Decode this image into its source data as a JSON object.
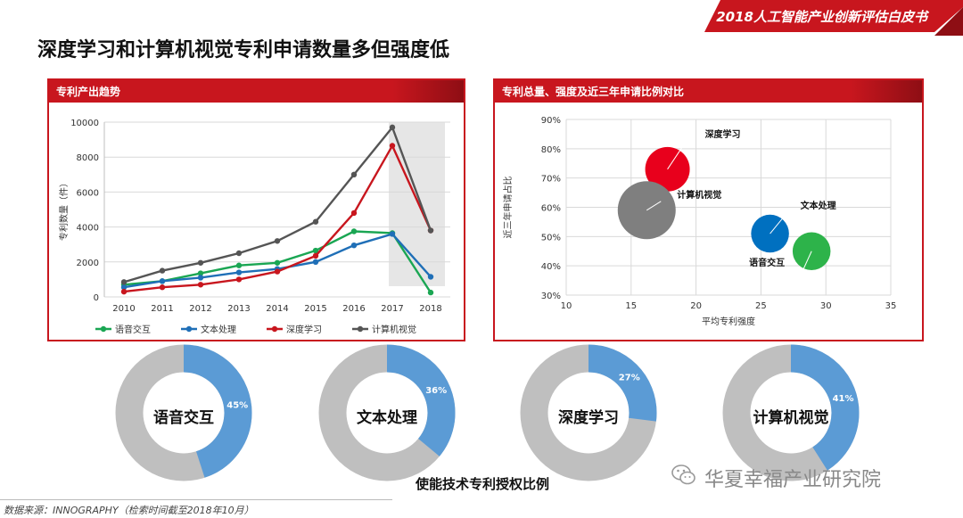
{
  "header": {
    "banner": "2018人工智能产业创新评估白皮书",
    "title": "深度学习和计算机视觉专利申请数量多但强度低"
  },
  "colors": {
    "brand": "#c8161e",
    "green": "#1aa653",
    "blue": "#1f6fb7",
    "red": "#c8161e",
    "gray": "#555555",
    "donut_fill": "#5b9bd5",
    "donut_rest": "#bfbfbf"
  },
  "panels": {
    "left_title": "专利产出趋势",
    "right_title": "专利总量、强度及近三年申请比例对比"
  },
  "chart_data": [
    {
      "type": "line",
      "title": "专利产出趋势",
      "xlabel": "",
      "ylabel": "专利数量（件）",
      "x": [
        "2010",
        "2011",
        "2012",
        "2013",
        "2014",
        "2015",
        "2016",
        "2017",
        "2018"
      ],
      "ylim": [
        0,
        10000
      ],
      "yticks": [
        "0",
        "2000",
        "4000",
        "6000",
        "8000",
        "10000"
      ],
      "grid": true,
      "legend": "bottom",
      "highlight_range": [
        "2017",
        "2018"
      ],
      "series": [
        {
          "name": "语音交互",
          "color": "#1aa653",
          "values": [
            700,
            900,
            1350,
            1800,
            1950,
            2650,
            3750,
            3650,
            250
          ]
        },
        {
          "name": "文本处理",
          "color": "#1f6fb7",
          "values": [
            550,
            900,
            1100,
            1400,
            1600,
            2000,
            2950,
            3600,
            1150
          ]
        },
        {
          "name": "深度学习",
          "color": "#c8161e",
          "values": [
            300,
            550,
            700,
            1000,
            1450,
            2350,
            4800,
            8650,
            3800
          ]
        },
        {
          "name": "计算机视觉",
          "color": "#555555",
          "values": [
            850,
            1500,
            1950,
            2500,
            3200,
            4300,
            7000,
            9700,
            3800
          ]
        }
      ]
    },
    {
      "type": "scatter",
      "title": "专利总量、强度及近三年申请比例对比",
      "xlabel": "平均专利强度",
      "ylabel": "近三年申请占比",
      "xlim": [
        10,
        35
      ],
      "ylim": [
        30,
        90
      ],
      "xticks": [
        "10",
        "15",
        "20",
        "25",
        "30",
        "35"
      ],
      "yticks": [
        "30%",
        "40%",
        "50%",
        "60%",
        "70%",
        "80%",
        "90%"
      ],
      "grid": true,
      "points": [
        {
          "name": "深度学习",
          "x": 17.8,
          "y": 73,
          "size": 1.0,
          "color": "#e8001c"
        },
        {
          "name": "计算机视觉",
          "x": 16.2,
          "y": 59,
          "size": 1.3,
          "color": "#7f7f7f"
        },
        {
          "name": "文本处理",
          "x": 25.7,
          "y": 51,
          "size": 0.85,
          "color": "#0070c0"
        },
        {
          "name": "语音交互",
          "x": 28.9,
          "y": 45,
          "size": 0.85,
          "color": "#2db34a"
        }
      ]
    },
    {
      "type": "pie",
      "title": "使能技术专利授权比例",
      "donuts": [
        {
          "name": "语音交互",
          "value": 45,
          "label": "45%"
        },
        {
          "name": "文本处理",
          "value": 36,
          "label": "36%"
        },
        {
          "name": "深度学习",
          "value": 27,
          "label": "27%"
        },
        {
          "name": "计算机视觉",
          "value": 41,
          "label": "41%"
        }
      ]
    }
  ],
  "caption": "使能技术专利授权比例",
  "watermark": "华夏幸福产业研究院",
  "footnote": "数据来源：INNOGRAPHY（检索时间截至2018年10月）"
}
